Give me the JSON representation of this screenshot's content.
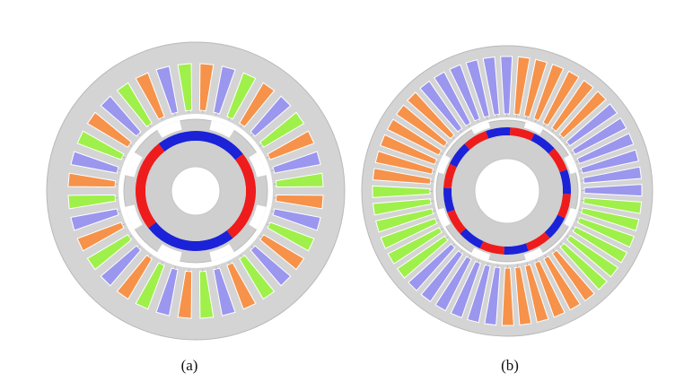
{
  "figure": {
    "panels": [
      {
        "id": "a",
        "caption": "(a)",
        "stator_slots": 36,
        "stator_slot_phase_sequence": [
          "orange",
          "blue",
          "green"
        ],
        "rotor_magnet_segments": 4,
        "rotor_magnet_sequence": [
          "red",
          "blue",
          "red",
          "blue"
        ],
        "rotor_notches": 8
      },
      {
        "id": "b",
        "caption": "(b)",
        "stator_slots": 48,
        "stator_slot_phase_sequence": [
          "orange",
          "orange",
          "orange",
          "orange",
          "orange",
          "orange",
          "blue",
          "blue",
          "blue",
          "blue",
          "blue",
          "blue",
          "green",
          "green",
          "green",
          "green",
          "green",
          "green"
        ],
        "rotor_magnet_segments": 16,
        "rotor_magnet_sequence": [
          "red",
          "blue"
        ],
        "rotor_notches": 8
      }
    ],
    "colors": {
      "background": "#ffffff",
      "stator_iron": "#d4d4d4",
      "stator_edge": "#b9b9b9",
      "air_gap": "#ffffff",
      "rotor_iron": "#cfcfcf",
      "orange": "#f6924a",
      "blue": "#9b96ee",
      "green": "#9ff04a",
      "magnet_red": "#ee1c1c",
      "magnet_blue": "#1b22d8",
      "slot_outline": "#ffffff"
    }
  }
}
